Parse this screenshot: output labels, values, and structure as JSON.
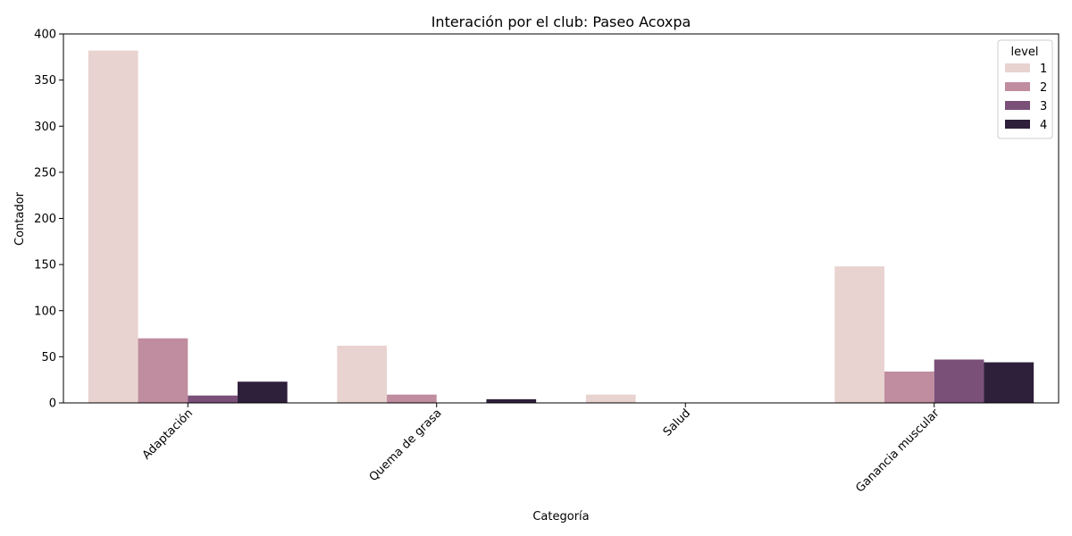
{
  "chart_data": {
    "type": "bar",
    "title": "Interación por el club: Paseo Acoxpa",
    "xlabel": "Categoría",
    "ylabel": "Contador",
    "categories": [
      "Adaptación",
      "Quema de grasa",
      "Salud",
      "Ganancia muscular"
    ],
    "series": [
      {
        "name": "1",
        "color": "#e8d3d0",
        "values": [
          382,
          62,
          9,
          148
        ]
      },
      {
        "name": "2",
        "color": "#c08c9f",
        "values": [
          70,
          9,
          0,
          34
        ]
      },
      {
        "name": "3",
        "color": "#7a5079",
        "values": [
          8,
          0,
          0,
          47
        ]
      },
      {
        "name": "4",
        "color": "#2e1f3a",
        "values": [
          23,
          4,
          0,
          44
        ]
      }
    ],
    "ylim": [
      0,
      400
    ],
    "yticks": [
      "0",
      "50",
      "100",
      "150",
      "200",
      "250",
      "300",
      "350",
      "400"
    ],
    "legend": {
      "title": "level",
      "position": "top-right"
    },
    "grid": false
  }
}
